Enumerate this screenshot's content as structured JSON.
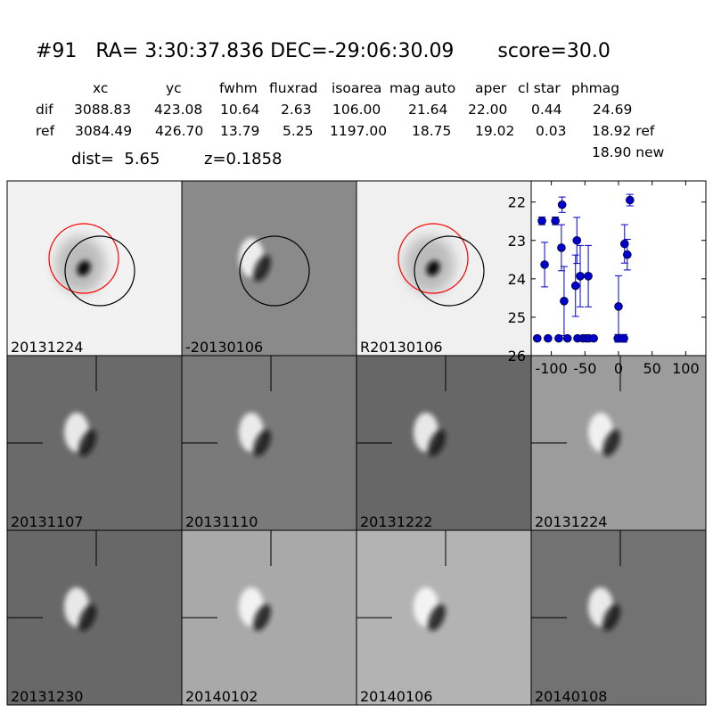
{
  "header": {
    "title": "#91   RA= 3:30:37.836 DEC=-29:06:30.09       score=30.0"
  },
  "table": {
    "columns": [
      "xc",
      "yc",
      "fwhm",
      "fluxrad",
      "isoarea",
      "mag auto",
      "aper",
      "cl star",
      "phmag"
    ],
    "rows": [
      [
        "dif",
        "3088.83",
        "423.08",
        "10.64",
        "2.63",
        "106.00",
        "21.64",
        "22.00",
        "0.44",
        "24.69"
      ],
      [
        "ref",
        "3084.49",
        "426.70",
        "13.79",
        "5.25",
        "1197.00",
        "18.75",
        "19.02",
        "0.03",
        "18.92 ref"
      ]
    ],
    "extra": "18.90 new"
  },
  "dist": {
    "dist": "dist=  5.65",
    "z": "z=0.1858"
  },
  "panels": [
    {
      "label": "20131224"
    },
    {
      "label": "-20130106"
    },
    {
      "label": "R20130106"
    },
    {
      "label": "20131107"
    },
    {
      "label": "20131110"
    },
    {
      "label": "20131222"
    },
    {
      "label": "20131224",
      "color": "#ff0000"
    },
    {
      "label": "20131230"
    },
    {
      "label": "20140102"
    },
    {
      "label": "20140106"
    },
    {
      "label": "20140108"
    }
  ],
  "chart_data": {
    "type": "errorbar",
    "color": "#0000cc",
    "x": [
      -114,
      -110,
      -94,
      -84,
      -85,
      -81,
      -64,
      -62,
      -57,
      -45,
      0,
      9,
      13,
      17,
      -121,
      -105,
      -89,
      -76,
      -61,
      -53,
      -48,
      -44,
      -37,
      -1,
      8
    ],
    "values": [
      22.49,
      23.63,
      22.49,
      22.07,
      23.19,
      24.58,
      24.18,
      23.0,
      23.93,
      23.93,
      24.72,
      23.09,
      23.37,
      21.95,
      25.55,
      25.55,
      25.55,
      25.55,
      25.55,
      25.55,
      25.55,
      25.55,
      25.55,
      25.55,
      25.55
    ],
    "errors": [
      0.1,
      0.58,
      0.1,
      0.2,
      0.6,
      0.9,
      0.8,
      0.6,
      0.8,
      0.8,
      0.8,
      0.5,
      0.4,
      0.15,
      0,
      0,
      0,
      0,
      0,
      0,
      0,
      0,
      0,
      0.1,
      0.1
    ],
    "xlim": [
      -130,
      130
    ],
    "xticks": [
      -100,
      -50,
      0,
      50,
      100
    ],
    "ylim": [
      26,
      21.45
    ],
    "yticks": [
      22,
      23,
      24,
      25,
      26
    ]
  }
}
